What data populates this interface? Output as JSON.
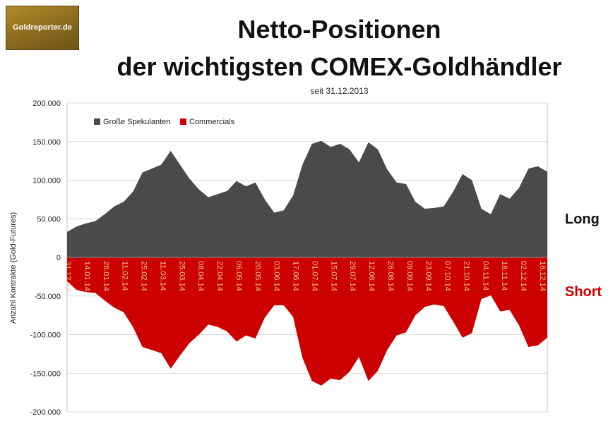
{
  "logo": {
    "text": "Goldreporter.de"
  },
  "title_line1": "Netto-Positionen",
  "title_line2": "der wichtigsten COMEX-Goldhändler",
  "subtitle": "seit 31.12.2013",
  "labels": {
    "long": "Long",
    "short": "Short"
  },
  "colors": {
    "speculators": "#4a4a4a",
    "commercials": "#cc0000",
    "date_labels": "#e8c79a",
    "grid": "#d9d9d9"
  },
  "chart_data": {
    "type": "area",
    "ylabel": "Anzahl Kontrakte  (Gold-Futures)",
    "ylim": [
      -200000,
      200000
    ],
    "y_ticks": [
      200000,
      150000,
      100000,
      50000,
      0,
      -50000,
      -100000,
      -150000,
      -200000
    ],
    "y_tick_labels": [
      "200.000",
      "150.000",
      "100.000",
      "50.000",
      "0",
      "-50.000",
      "-100.000",
      "-150.000",
      "-200.000"
    ],
    "grid": true,
    "legend_position": "top-left",
    "x_tick_labels": [
      "31.12.13",
      "14.01.14",
      "28.01.14",
      "11.02.14",
      "25.02.14",
      "11.03.14",
      "25.03.14",
      "08.04.14",
      "22.04.14",
      "06.05.14",
      "20.05.14",
      "03.06.14",
      "17.06.14",
      "01.07.14",
      "15.07.14",
      "29.07.14",
      "12.08.14",
      "26.08.14",
      "09.09.14",
      "23.09.14",
      "07.10.14",
      "21.10.14",
      "04.11.14",
      "18.11.14",
      "02.12.14",
      "16.12.14"
    ],
    "series": [
      {
        "name": "Große Spekulanten",
        "values": [
          33000,
          40000,
          44000,
          47000,
          56000,
          66000,
          72000,
          85000,
          110000,
          115000,
          120000,
          138000,
          120000,
          102000,
          88000,
          78000,
          82000,
          86000,
          99000,
          92000,
          97000,
          75000,
          58000,
          61000,
          80000,
          120000,
          147000,
          151000,
          143000,
          147000,
          140000,
          123000,
          149000,
          140000,
          114000,
          97000,
          95000,
          72000,
          63000,
          64000,
          66000,
          85000,
          108000,
          100000,
          63000,
          56000,
          82000,
          76000,
          90000,
          115000,
          118000,
          111000
        ]
      },
      {
        "name": "Commercials",
        "values": [
          -31000,
          -42000,
          -45000,
          -46000,
          -56000,
          -65000,
          -71000,
          -90000,
          -116000,
          -120000,
          -124000,
          -144000,
          -127000,
          -111000,
          -100000,
          -87000,
          -90000,
          -96000,
          -109000,
          -101000,
          -105000,
          -78000,
          -62000,
          -62000,
          -77000,
          -130000,
          -160000,
          -166000,
          -157000,
          -159000,
          -148000,
          -129000,
          -160000,
          -147000,
          -120000,
          -101000,
          -97000,
          -75000,
          -64000,
          -61000,
          -63000,
          -83000,
          -104000,
          -98000,
          -54000,
          -49000,
          -70000,
          -68000,
          -88000,
          -116000,
          -114000,
          -104000
        ]
      }
    ]
  }
}
